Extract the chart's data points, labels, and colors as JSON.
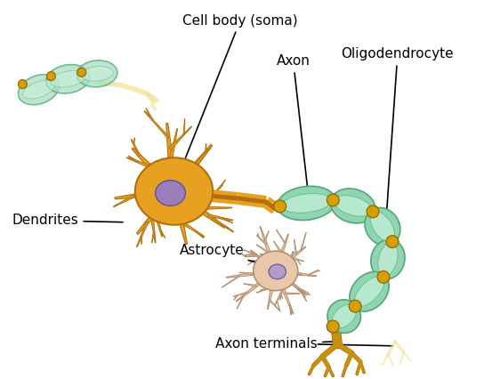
{
  "background_color": "#ffffff",
  "labels": {
    "cell_body": "Cell body (soma)",
    "axon": "Axon",
    "oligodendrocyte": "Oligodendrocyte",
    "dendrites": "Dendrites",
    "astrocyte": "Astrocyte",
    "axon_terminals": "Axon terminals"
  },
  "colors": {
    "neuron_fill": "#E8A020",
    "neuron_edge": "#B07010",
    "neuron_nucleus_fill": "#9B7DB8",
    "neuron_nucleus_edge": "#6050A0",
    "myelin_fill": "#90D4B0",
    "myelin_edge": "#50A878",
    "myelin_inner": "#C0EED8",
    "myelin_connector": "#D4A000",
    "myelin_connector_edge": "#906000",
    "astrocyte_fill": "#E8C8A8",
    "astrocyte_edge": "#B09070",
    "astrocyte_nucleus_fill": "#B09EC8",
    "axon_terminal_fill": "#C8900C",
    "axon_terminal_edge": "#906000",
    "ghost_fill": "#F0E090",
    "oligo_fill": "#A8DEC0",
    "oligo_edge": "#50A878",
    "oligo_inner": "#C8F0DC",
    "annotation": "#000000"
  },
  "fontsize": 11,
  "figsize": [
    5.44,
    4.26
  ],
  "dpi": 100
}
